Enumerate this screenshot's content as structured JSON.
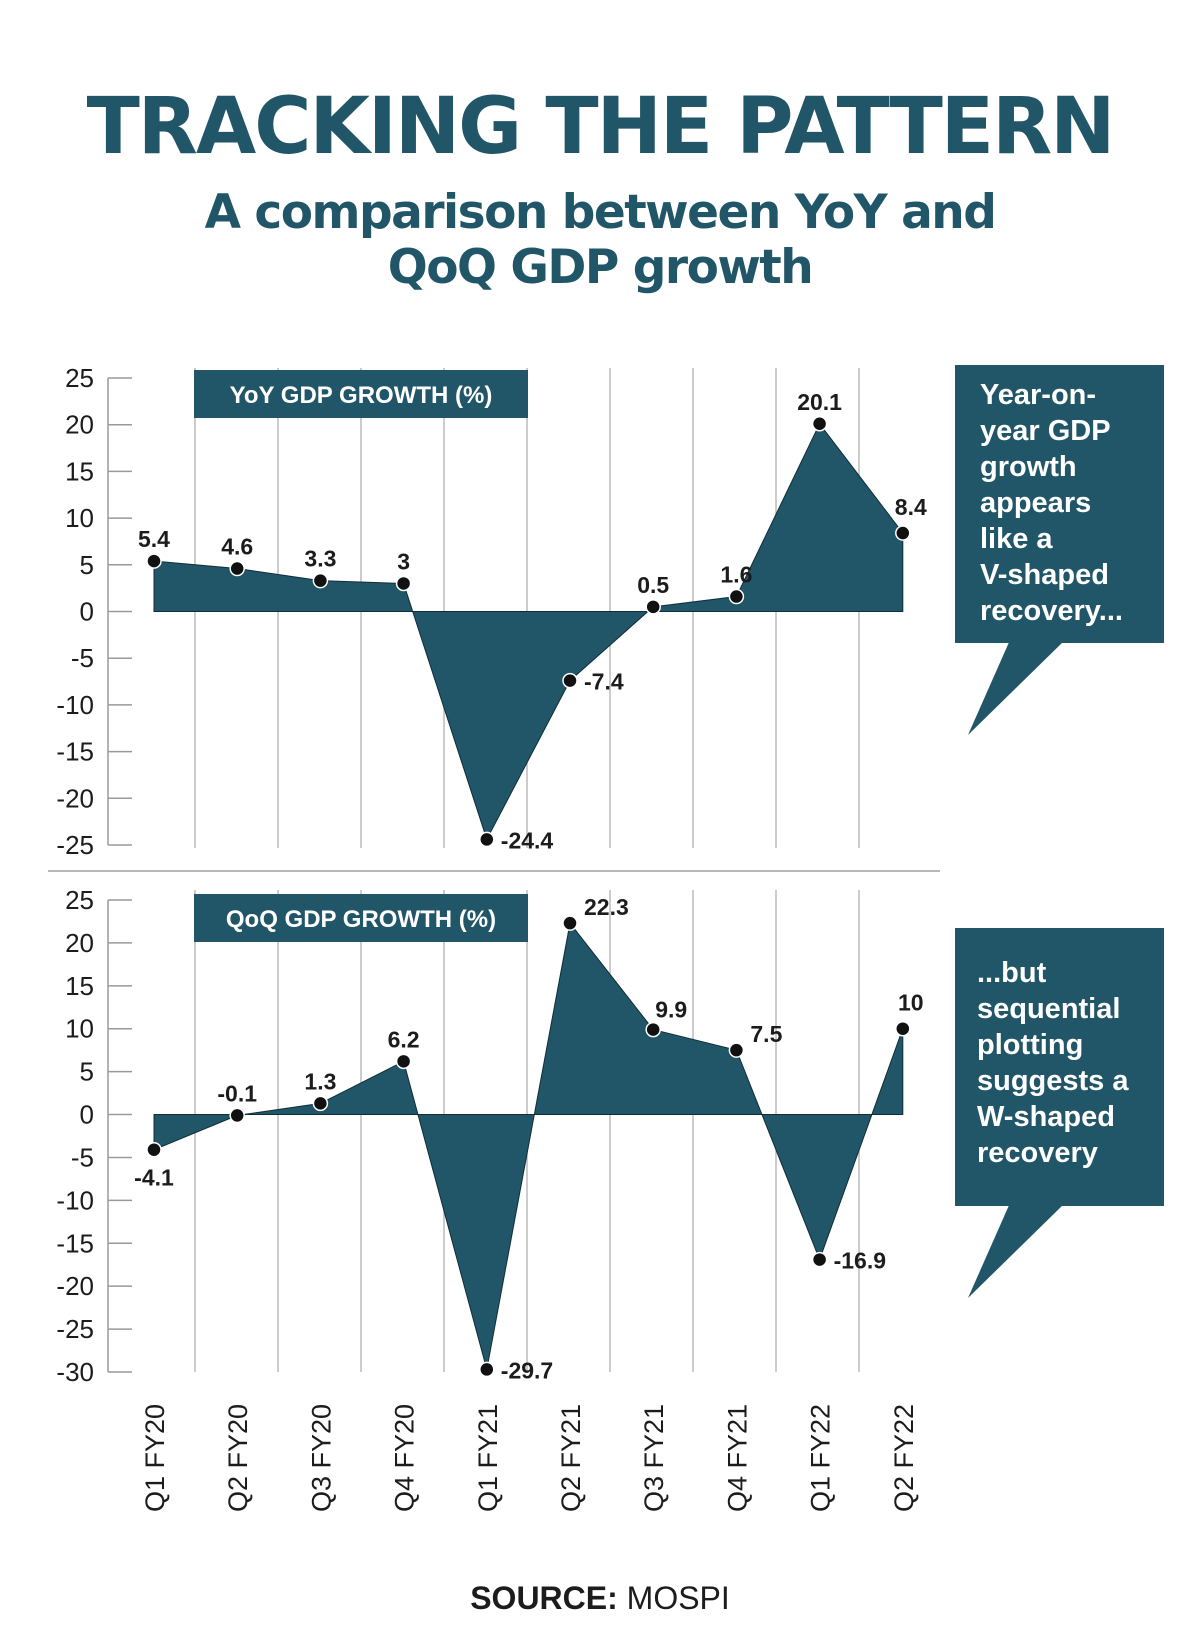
{
  "header": {
    "title": "TRACKING THE PATTERN",
    "subtitle_line1": "A comparison between YoY and",
    "subtitle_line2": "QoQ GDP growth"
  },
  "source": {
    "label": "SOURCE:",
    "value": "MOSPI"
  },
  "colors": {
    "fill": "#215668",
    "title": "#215668",
    "grid": "#b0b0b0",
    "text": "#1c1c1c"
  },
  "chart_data": [
    {
      "type": "area",
      "title": "YoY GDP GROWTH (%)",
      "categories": [
        "Q1 FY20",
        "Q2 FY20",
        "Q3 FY20",
        "Q4 FY20",
        "Q1 FY21",
        "Q2 FY21",
        "Q3 FY21",
        "Q4 FY21",
        "Q1 FY22",
        "Q2 FY22"
      ],
      "series": [
        {
          "values": [
            5.4,
            4.6,
            3.3,
            3,
            -24.4,
            -7.4,
            0.5,
            1.6,
            20.1,
            8.4
          ]
        }
      ],
      "value_labels": [
        "5.4",
        "4.6",
        "3.3",
        "3",
        "-24.4",
        "-7.4",
        "0.5",
        "1.6",
        "20.1",
        "8.4"
      ],
      "yticks": [
        25,
        20,
        15,
        10,
        5,
        0,
        -5,
        -10,
        -15,
        -20,
        -25
      ],
      "ylim": [
        -25,
        25
      ],
      "callout": [
        "Year-on-",
        "year GDP",
        "growth",
        "appears",
        "like a",
        "V-shaped",
        "recovery..."
      ]
    },
    {
      "type": "area",
      "title": "QoQ GDP GROWTH (%)",
      "categories": [
        "Q1 FY20",
        "Q2 FY20",
        "Q3 FY20",
        "Q4 FY20",
        "Q1 FY21",
        "Q2 FY21",
        "Q3 FY21",
        "Q4 FY21",
        "Q1 FY22",
        "Q2 FY22"
      ],
      "series": [
        {
          "values": [
            -4.1,
            -0.1,
            1.3,
            6.2,
            -29.7,
            22.3,
            9.9,
            7.5,
            -16.9,
            10
          ]
        }
      ],
      "value_labels": [
        "-4.1",
        "-0.1",
        "1.3",
        "6.2",
        "-29.7",
        "22.3",
        "9.9",
        "7.5",
        "-16.9",
        "10"
      ],
      "yticks": [
        25,
        20,
        15,
        10,
        5,
        0,
        -5,
        -10,
        -15,
        -20,
        -25,
        -30
      ],
      "ylim": [
        -30,
        25
      ],
      "callout": [
        "...but",
        "sequential",
        "plotting",
        "suggests a",
        "W-shaped",
        "recovery"
      ]
    }
  ]
}
